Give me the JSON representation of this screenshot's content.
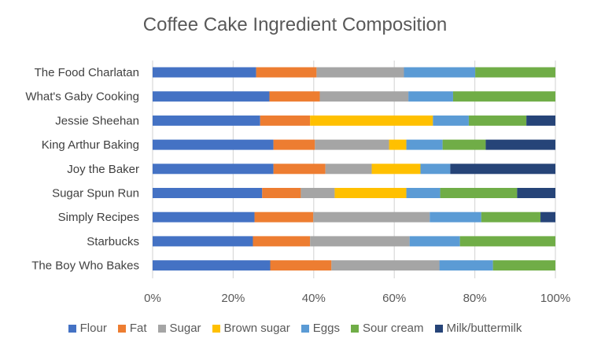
{
  "chart_data": {
    "type": "bar",
    "orientation": "horizontal",
    "stacked": "percent",
    "title": "Coffee Cake Ingredient Composition",
    "categories": [
      "The Food Charlatan",
      "What's Gaby Cooking",
      "Jessie Sheehan",
      "King Arthur Baking",
      "Joy the Baker",
      "Sugar Spun Run",
      "Simply Recipes",
      "Starbucks",
      "The Boy Who Bakes"
    ],
    "series": [
      {
        "name": "Flour",
        "color": "#4472c4",
        "values": [
          25.7,
          29.0,
          26.7,
          30.0,
          30.0,
          27.2,
          25.3,
          24.9,
          29.2
        ]
      },
      {
        "name": "Fat",
        "color": "#ed7d31",
        "values": [
          15.0,
          12.5,
          12.4,
          10.3,
          12.9,
          9.6,
          14.6,
          14.2,
          15.2
        ]
      },
      {
        "name": "Sugar",
        "color": "#a5a5a5",
        "values": [
          21.7,
          22.0,
          0,
          18.4,
          11.5,
          8.4,
          28.9,
          24.7,
          26.8
        ]
      },
      {
        "name": "Brown sugar",
        "color": "#ffc000",
        "values": [
          0,
          0,
          30.5,
          4.3,
          12.1,
          17.8,
          0,
          0,
          0
        ]
      },
      {
        "name": "Eggs",
        "color": "#5b9bd5",
        "values": [
          17.7,
          11.1,
          8.9,
          9.0,
          7.4,
          8.4,
          12.8,
          12.5,
          13.3
        ]
      },
      {
        "name": "Sour cream",
        "color": "#70ad47",
        "values": [
          19.9,
          25.4,
          14.3,
          10.7,
          0,
          19.1,
          14.7,
          23.7,
          15.5
        ]
      },
      {
        "name": "Milk/buttermilk",
        "color": "#264478",
        "values": [
          0,
          0,
          7.2,
          17.3,
          26.1,
          9.5,
          3.7,
          0,
          0
        ]
      }
    ],
    "xlim": [
      0,
      100
    ],
    "x_ticks": [
      "0%",
      "20%",
      "40%",
      "60%",
      "80%",
      "100%"
    ],
    "grid": true,
    "legend": "bottom"
  }
}
